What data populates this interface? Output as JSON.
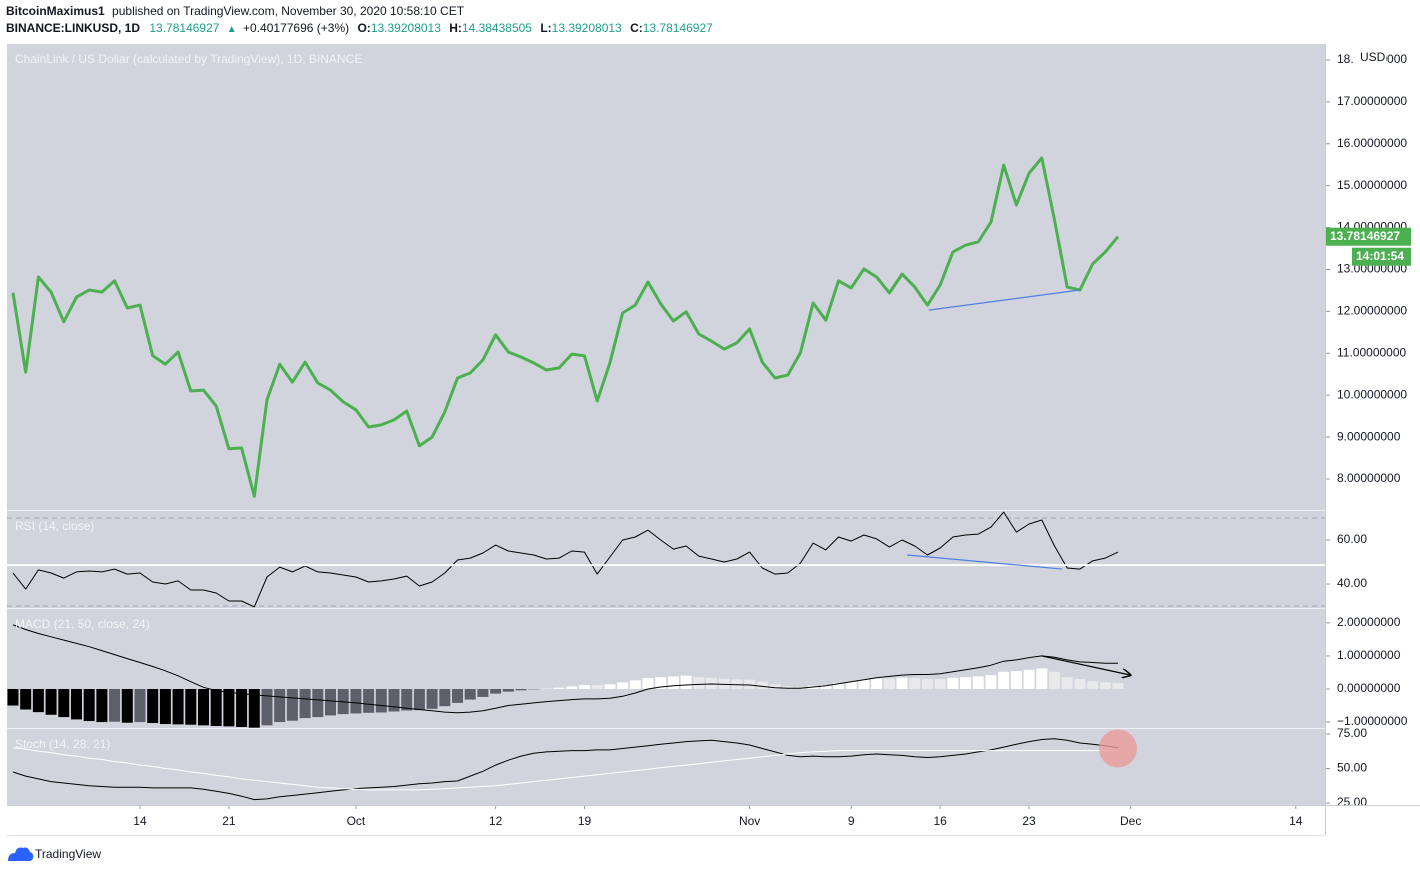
{
  "header": {
    "author": "BitcoinMaximus1",
    "published": "published on TradingView.com, November 30, 2020 10:58:10 CET",
    "symbol": "BINANCE:LINKUSD, 1D",
    "price": "13.78146927",
    "change_icon": "▲",
    "change": "+0.40177696 (+3%)",
    "ohlc": [
      {
        "label": "O:",
        "value": "13.39208013"
      },
      {
        "label": "H:",
        "value": "14.38438505"
      },
      {
        "label": "L:",
        "value": "13.39208013"
      },
      {
        "label": "C:",
        "value": "13.78146927"
      }
    ]
  },
  "footer": {
    "brand": "TradingView"
  },
  "chart_data": [
    {
      "type": "line",
      "title": "ChainLink / US Dollar (calculated by TradingView), 1D, BINANCE",
      "currency": "USD",
      "last_price_label": "13.78146927",
      "countdown": "14:01:54",
      "x": [
        4,
        5,
        6,
        7,
        8,
        9,
        10,
        11,
        12,
        13,
        14,
        15,
        16,
        17,
        18,
        19,
        20,
        21,
        22,
        23,
        24,
        25,
        26,
        27,
        28,
        29,
        30,
        31,
        32,
        33,
        34,
        35,
        36,
        37,
        38,
        39,
        40,
        41,
        42,
        43,
        44,
        45,
        46,
        47,
        48,
        49,
        50,
        51,
        52,
        53,
        54,
        55,
        56,
        57,
        58,
        59,
        60,
        61,
        62,
        63,
        64,
        65,
        66,
        67,
        68,
        69,
        70,
        71,
        72,
        73,
        74,
        75,
        76,
        77,
        78,
        79,
        80,
        81,
        82,
        83,
        84,
        85,
        86,
        87,
        88,
        89,
        90,
        91
      ],
      "xlim": [
        3.53,
        107.3
      ],
      "xticks": [
        14,
        21,
        {
          "value": 31,
          "label": "Oct"
        },
        {
          "value": 42,
          "label": "12"
        },
        {
          "value": 49,
          "label": "19"
        },
        {
          "value": 62,
          "label": "Nov"
        },
        {
          "value": 70,
          "label": "9"
        },
        {
          "value": 77,
          "label": "16"
        },
        {
          "value": 84,
          "label": "23"
        },
        {
          "value": 92,
          "label": "Dec"
        },
        {
          "value": 105,
          "label": "14"
        }
      ],
      "ylim": [
        7.26,
        18.38
      ],
      "yticks": [
        {
          "value": 8,
          "label": "8.00000000"
        },
        {
          "value": 9,
          "label": "9.00000000"
        },
        {
          "value": 10,
          "label": "10.00000000"
        },
        {
          "value": 11,
          "label": "11.00000000"
        },
        {
          "value": 12,
          "label": "12.00000000"
        },
        {
          "value": 13,
          "label": "13.00000000"
        },
        {
          "value": 14,
          "label": "14.00000000"
        },
        {
          "value": 15,
          "label": "15.00000000"
        },
        {
          "value": 16,
          "label": "16.00000000"
        },
        {
          "value": 17,
          "label": "17.00000000"
        },
        {
          "value": 18,
          "label": "18.00000000"
        }
      ],
      "series": [
        {
          "color": "#4caf50",
          "line_width": 3,
          "values": [
            12.44,
            10.55,
            12.82,
            12.46,
            11.75,
            12.34,
            12.51,
            12.46,
            12.73,
            12.08,
            12.15,
            10.94,
            10.74,
            11.03,
            10.1,
            10.12,
            9.74,
            8.72,
            8.74,
            7.59,
            9.89,
            10.74,
            10.31,
            10.79,
            10.29,
            10.12,
            9.84,
            9.65,
            9.24,
            9.29,
            9.41,
            9.62,
            8.79,
            9.0,
            9.6,
            10.41,
            10.53,
            10.84,
            11.44,
            11.03,
            10.91,
            10.77,
            10.6,
            10.65,
            10.98,
            10.94,
            9.86,
            10.77,
            11.96,
            12.15,
            12.7,
            12.18,
            11.77,
            11.99,
            11.46,
            11.29,
            11.1,
            11.25,
            11.58,
            10.79,
            10.41,
            10.48,
            11.01,
            12.2,
            11.79,
            12.73,
            12.56,
            13.01,
            12.82,
            12.44,
            12.89,
            12.58,
            12.15,
            12.63,
            13.42,
            13.58,
            13.66,
            14.13,
            15.49,
            14.54,
            15.3,
            15.66,
            14.18,
            12.58,
            12.51,
            13.13,
            13.42,
            13.78146927
          ]
        }
      ],
      "annotations": [
        {
          "type": "line",
          "x": [
            76.1,
            88
          ],
          "y": [
            12.03,
            12.51
          ],
          "color": "#4f7fe6"
        }
      ]
    },
    {
      "type": "line",
      "title": "RSI (14, close)",
      "ylim": [
        29.1,
        73.2
      ],
      "yticks": [
        {
          "value": 40,
          "label": "40.00"
        },
        {
          "value": 60,
          "label": "60.00"
        }
      ],
      "levels": [
        70,
        30
      ],
      "series": [
        {
          "color": "#000000",
          "line_width": 1,
          "values": [
            45.0,
            37.7,
            46.4,
            45.0,
            42.7,
            45.5,
            45.9,
            45.5,
            46.8,
            44.5,
            45.0,
            40.9,
            40.0,
            41.4,
            37.3,
            37.3,
            35.9,
            32.3,
            32.3,
            29.6,
            43.2,
            47.7,
            45.5,
            48.2,
            45.5,
            45.0,
            44.1,
            43.2,
            40.9,
            41.4,
            42.3,
            43.6,
            39.1,
            40.9,
            45.0,
            50.9,
            51.8,
            54.1,
            57.7,
            55.0,
            54.1,
            53.2,
            51.4,
            51.8,
            55.0,
            54.5,
            44.5,
            52.3,
            60.0,
            61.4,
            64.5,
            60.0,
            55.9,
            57.3,
            52.7,
            51.4,
            50.0,
            51.4,
            54.5,
            47.3,
            44.5,
            45.0,
            49.5,
            58.6,
            55.5,
            61.4,
            59.5,
            62.3,
            60.5,
            56.8,
            60.0,
            57.3,
            53.2,
            56.4,
            61.4,
            62.3,
            62.7,
            65.9,
            72.7,
            63.6,
            67.3,
            69.1,
            57.3,
            47.3,
            46.8,
            50.5,
            51.8,
            54.5
          ]
        }
      ],
      "annotations": [
        {
          "type": "hline",
          "y": 48.6,
          "color": "#ffffff"
        },
        {
          "type": "line",
          "x": [
            74.4,
            86.6
          ],
          "y": [
            53.2,
            46.8
          ],
          "color": "#4f7fe6"
        }
      ]
    },
    {
      "type": "bar",
      "title": "MACD (21, 50, close, 24)",
      "ylim": [
        -1.18,
        2.42
      ],
      "yticks": [
        {
          "value": -1,
          "label": "−1.00000000"
        },
        {
          "value": 0,
          "label": "0.00000000"
        },
        {
          "value": 1,
          "label": "1.00000000"
        },
        {
          "value": 2,
          "label": "2.00000000"
        }
      ],
      "series": [
        {
          "type": "bar",
          "colors": {
            "below_falling": "#000000",
            "below_rising": "#5d606b",
            "above_rising": "#ffffff",
            "above_falling": "#e9e9ec"
          },
          "values": [
            -0.5,
            -0.62,
            -0.7,
            -0.78,
            -0.85,
            -0.92,
            -0.97,
            -1.0,
            -0.99,
            -1.02,
            -1.0,
            -1.03,
            -1.06,
            -1.07,
            -1.08,
            -1.1,
            -1.12,
            -1.13,
            -1.15,
            -1.17,
            -1.1,
            -1.0,
            -0.96,
            -0.88,
            -0.85,
            -0.8,
            -0.76,
            -0.74,
            -0.72,
            -0.71,
            -0.68,
            -0.65,
            -0.64,
            -0.6,
            -0.52,
            -0.42,
            -0.32,
            -0.24,
            -0.14,
            -0.08,
            -0.04,
            -0.01,
            0.01,
            0.04,
            0.08,
            0.12,
            0.12,
            0.14,
            0.2,
            0.26,
            0.33,
            0.36,
            0.38,
            0.4,
            0.36,
            0.34,
            0.31,
            0.29,
            0.28,
            0.22,
            0.14,
            0.08,
            0.06,
            0.1,
            0.12,
            0.18,
            0.22,
            0.28,
            0.32,
            0.32,
            0.34,
            0.33,
            0.3,
            0.3,
            0.34,
            0.36,
            0.38,
            0.42,
            0.52,
            0.54,
            0.58,
            0.62,
            0.52,
            0.36,
            0.3,
            0.24,
            0.2,
            0.18
          ]
        },
        {
          "type": "line",
          "color": "#000000",
          "line_width": 1,
          "values": [
            1.94,
            1.8,
            1.68,
            1.58,
            1.48,
            1.38,
            1.28,
            1.16,
            1.04,
            0.92,
            0.8,
            0.68,
            0.55,
            0.4,
            0.22,
            0.05,
            -0.05,
            -0.1,
            -0.14,
            -0.18,
            -0.21,
            -0.24,
            -0.27,
            -0.3,
            -0.33,
            -0.36,
            -0.39,
            -0.42,
            -0.46,
            -0.5,
            -0.54,
            -0.58,
            -0.62,
            -0.66,
            -0.7,
            -0.72,
            -0.7,
            -0.66,
            -0.58,
            -0.5,
            -0.46,
            -0.42,
            -0.38,
            -0.35,
            -0.32,
            -0.3,
            -0.3,
            -0.28,
            -0.22,
            -0.12,
            0.0,
            0.06,
            0.1,
            0.12,
            0.14,
            0.15,
            0.14,
            0.13,
            0.12,
            0.08,
            0.04,
            0.02,
            0.02,
            0.06,
            0.1,
            0.16,
            0.22,
            0.28,
            0.34,
            0.38,
            0.42,
            0.44,
            0.44,
            0.46,
            0.52,
            0.58,
            0.64,
            0.72,
            0.84,
            0.88,
            0.95,
            1.0,
            0.96,
            0.88,
            0.82,
            0.8,
            0.78,
            0.78
          ]
        }
      ],
      "annotations": [
        {
          "type": "arrow",
          "x": [
            85,
            92
          ],
          "y": [
            1.0,
            0.42
          ],
          "color": "#000000"
        }
      ]
    },
    {
      "type": "line",
      "title": "Stoch (14, 28, 21)",
      "ylim": [
        23.6,
        78.6
      ],
      "yticks": [
        {
          "value": 25,
          "label": "25.00"
        },
        {
          "value": 50,
          "label": "50.00"
        },
        {
          "value": 75,
          "label": "75.00"
        }
      ],
      "series": [
        {
          "color": "#000000",
          "line_width": 1,
          "values": [
            47.5,
            44.5,
            42.5,
            40.5,
            39.5,
            38.5,
            37.5,
            37,
            36.5,
            36.5,
            36.5,
            36,
            36,
            36,
            36,
            35,
            33.5,
            32,
            30,
            27.5,
            28,
            29.5,
            30.5,
            31.5,
            32.5,
            33.5,
            34.5,
            35.5,
            36,
            36.5,
            37,
            38,
            39,
            39.5,
            40.5,
            41,
            44.5,
            48,
            52.5,
            56,
            59,
            61,
            62,
            62.5,
            63,
            63,
            63.5,
            63.5,
            64.5,
            65.5,
            66.5,
            67.5,
            68.5,
            69.5,
            70,
            70.5,
            69.5,
            68.5,
            67,
            64.5,
            62,
            59.5,
            58.5,
            59,
            58.5,
            58.5,
            59,
            60,
            60.5,
            60,
            59.5,
            58.5,
            58,
            58.5,
            59.5,
            60.5,
            62,
            63.5,
            65.5,
            67.5,
            69.5,
            71,
            71.5,
            70.5,
            68.5,
            67.5,
            66.5,
            65
          ]
        },
        {
          "color": "#ffffff",
          "line_width": 1,
          "values": [
            65,
            64,
            62.5,
            61.5,
            60,
            59,
            57.5,
            56.5,
            55,
            54,
            52.5,
            51.5,
            50,
            49,
            47.5,
            46.5,
            45,
            44,
            42.5,
            41.5,
            40.5,
            39.5,
            38.5,
            37.5,
            36.5,
            36,
            35.5,
            35,
            34.5,
            34.5,
            34.5,
            34.5,
            34.5,
            35,
            35.5,
            36,
            36.5,
            37,
            37.5,
            38.5,
            39.5,
            40.5,
            41.5,
            42.5,
            43.5,
            44.5,
            45.5,
            46.5,
            47.5,
            48.5,
            49.5,
            50.5,
            51.5,
            52.5,
            53.5,
            54.5,
            55.5,
            56.5,
            57.5,
            58.5,
            59.5,
            60.5,
            61.5,
            62,
            62.5,
            63,
            63,
            63,
            63,
            63,
            63,
            63,
            63,
            63,
            63,
            63,
            63,
            63,
            63,
            63,
            63,
            63,
            63,
            63,
            63,
            63,
            63,
            63
          ]
        }
      ],
      "annotations": [
        {
          "type": "circle",
          "x": 91,
          "y": 64.5,
          "color": "#e89a9a"
        }
      ]
    }
  ]
}
